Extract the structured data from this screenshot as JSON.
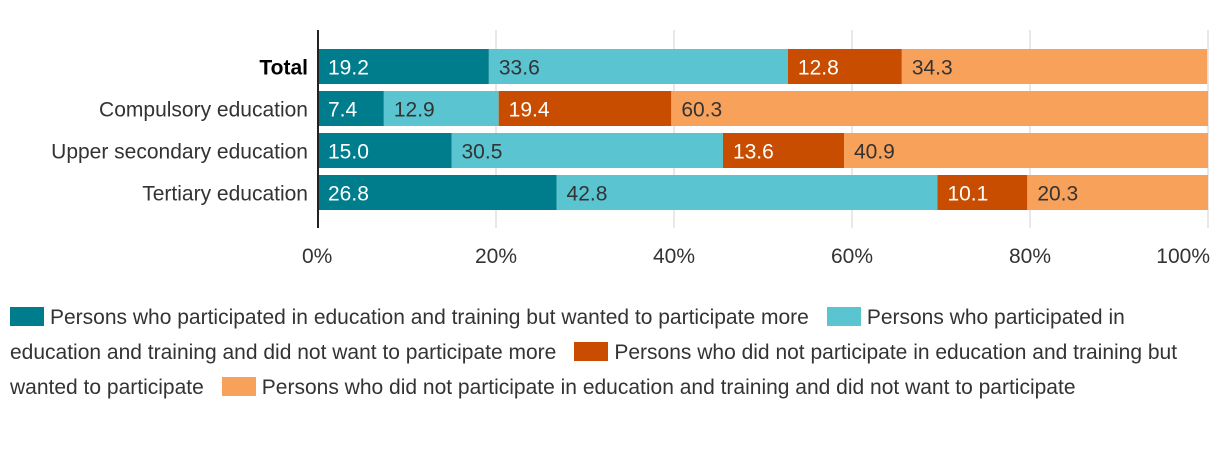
{
  "chart_data": {
    "type": "bar",
    "orientation": "horizontal",
    "stacked": true,
    "categories": [
      "Total",
      "Compulsory education",
      "Upper secondary education",
      "Tertiary education"
    ],
    "bold_categories": [
      "Total"
    ],
    "series": [
      {
        "name": "Persons who participated in education and training but wanted to participate more",
        "color": "#007d8c",
        "values": [
          19.2,
          7.4,
          15.0,
          26.8
        ]
      },
      {
        "name": "Persons who participated in education and training and did not want to participate more",
        "color": "#5bc4d1",
        "values": [
          33.6,
          12.9,
          30.5,
          42.8
        ]
      },
      {
        "name": "Persons who did not participate in education and training but wanted to participate",
        "color": "#c94d00",
        "values": [
          12.8,
          19.4,
          13.6,
          10.1
        ]
      },
      {
        "name": "Persons who did not participate in education and training and did not want to participate",
        "color": "#f8a15a",
        "values": [
          34.3,
          60.3,
          40.9,
          20.3
        ]
      }
    ],
    "xlim": [
      0,
      100
    ],
    "xticks": [
      "0%",
      "20%",
      "40%",
      "60%",
      "80%",
      "100%"
    ],
    "grid": true,
    "legend_position": "bottom",
    "data_labels": [
      "19.2",
      "33.6",
      "12.8",
      "34.3",
      "7.4",
      "12.9",
      "19.4",
      "60.3",
      "15.0",
      "30.5",
      "13.6",
      "40.9",
      "26.8",
      "42.8",
      "10.1",
      "20.3"
    ]
  }
}
